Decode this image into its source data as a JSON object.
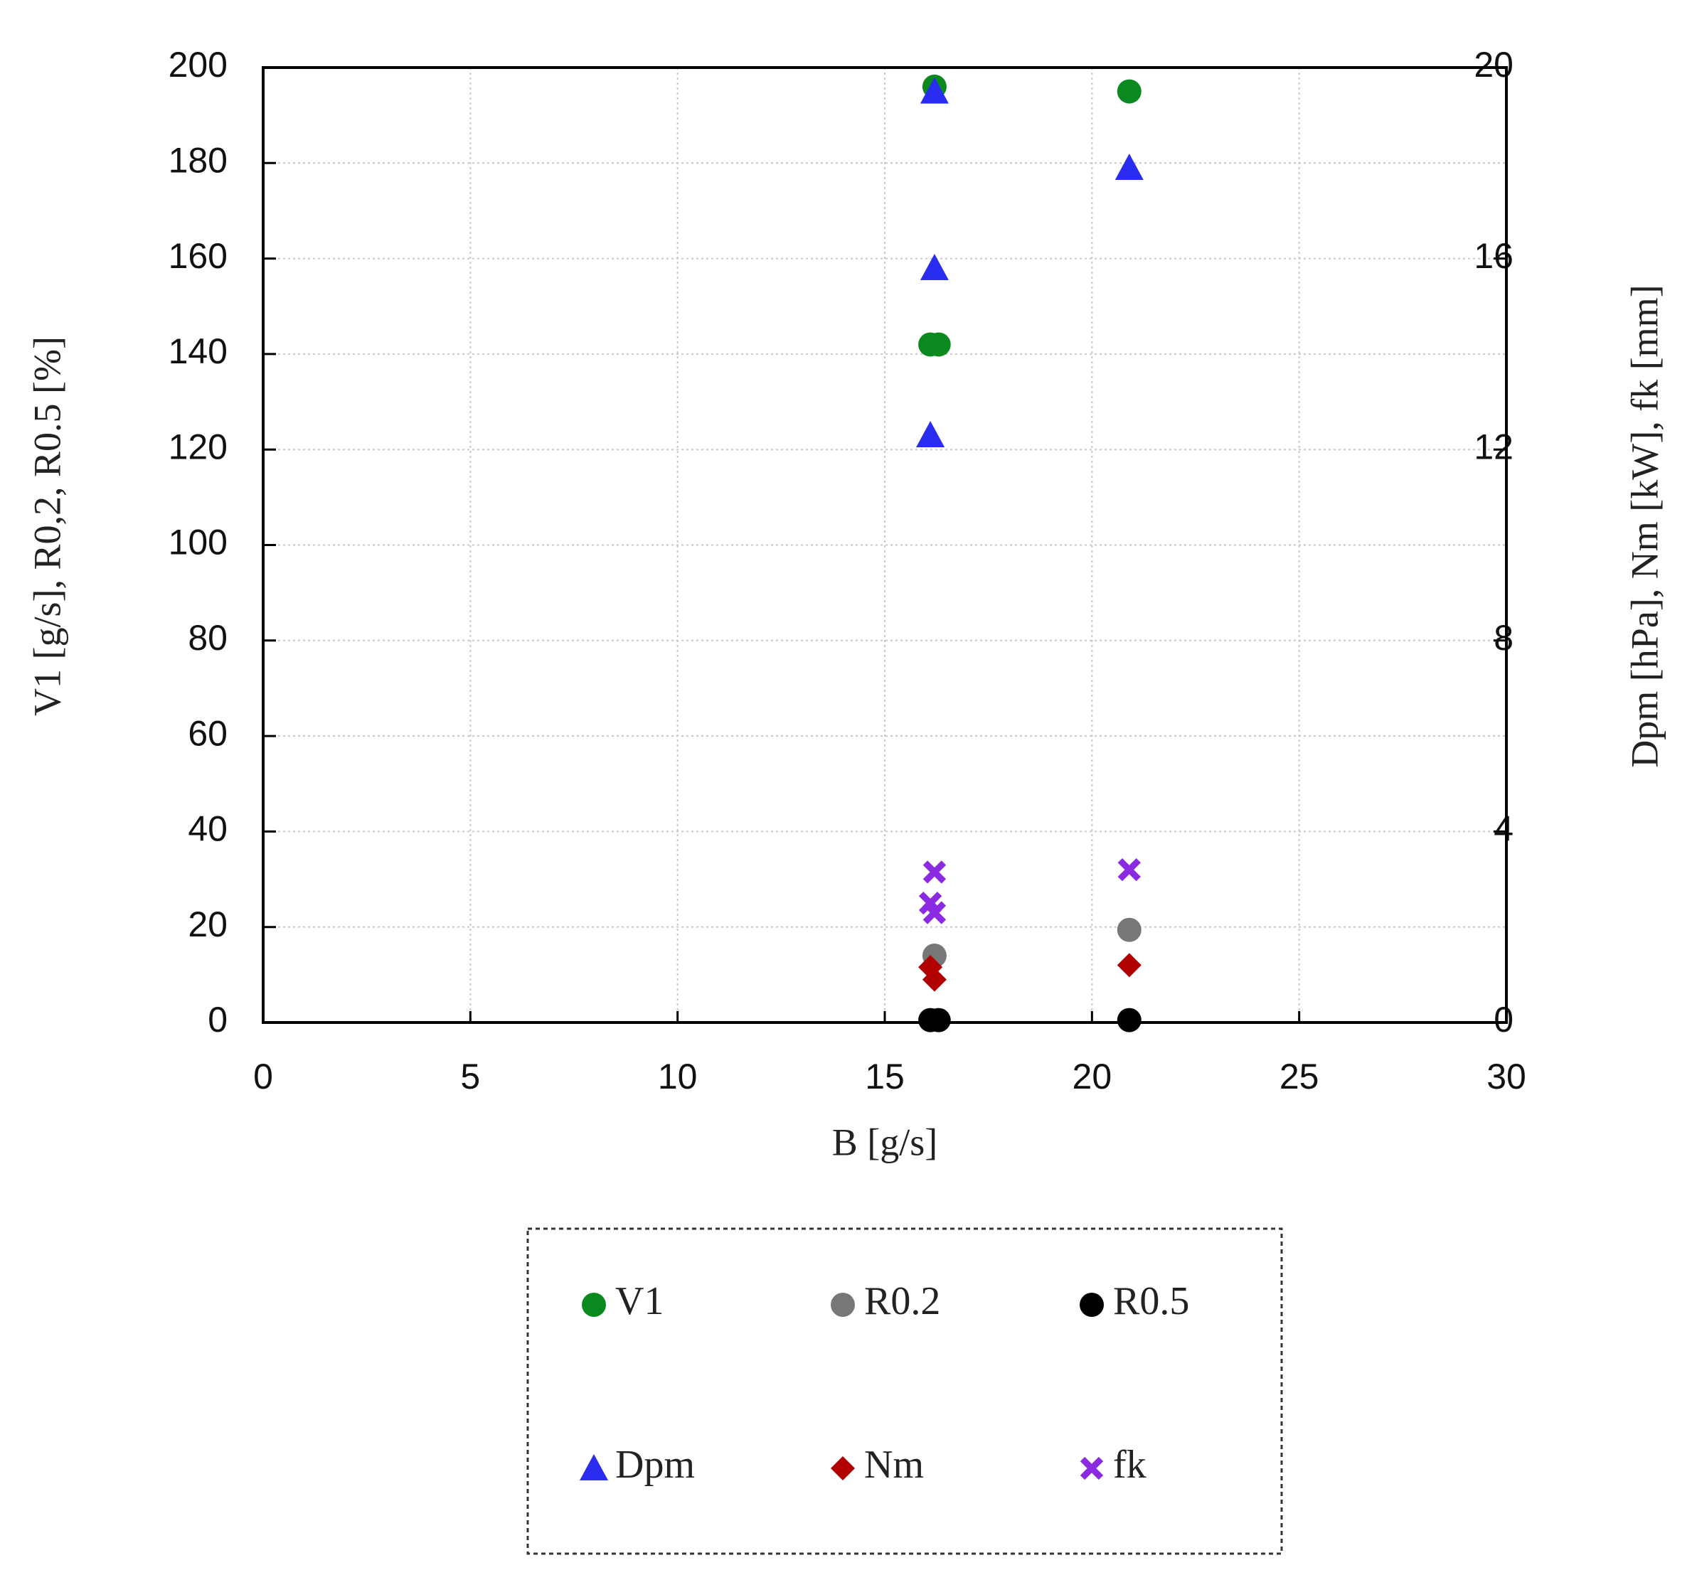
{
  "chart_data": {
    "type": "scatter",
    "xlabel": "B [g/s]",
    "ylabel": "V1 [g/s], R0,2, R0.5 [%]",
    "y2label": "Dpm [hPa], Nm [kW], fk [mm]",
    "xlim": [
      0,
      30
    ],
    "xticks": [
      0,
      5,
      10,
      15,
      20,
      25,
      30
    ],
    "ylim": [
      0,
      200
    ],
    "yticks": [
      0,
      20,
      40,
      60,
      80,
      100,
      120,
      140,
      160,
      180,
      200
    ],
    "y2lim": [
      0,
      20
    ],
    "y2ticks": [
      0,
      4,
      8,
      12,
      16,
      20
    ],
    "grid": true,
    "series": [
      {
        "name": "V1",
        "color": "#0a8a1e",
        "marker": "circle",
        "x": [
          16.1,
          16.3,
          16.2,
          20.9
        ],
        "values": [
          142,
          142,
          196,
          195
        ]
      },
      {
        "name": "R0.2",
        "color": "#777777",
        "marker": "circle",
        "x": [
          16.2,
          20.9
        ],
        "values": [
          14,
          19.4
        ]
      },
      {
        "name": "R0.5",
        "color": "#000000",
        "marker": "circle",
        "x": [
          16.1,
          16.3,
          20.9
        ],
        "values": [
          0.5,
          0.5,
          0.5
        ]
      },
      {
        "name": "Dpm",
        "color": "#2a2cf0",
        "marker": "triangle",
        "axis": "y2",
        "x": [
          16.2,
          16.2,
          16.1,
          20.9
        ],
        "values": [
          19.5,
          15.8,
          12.3,
          17.9
        ]
      },
      {
        "name": "Nm",
        "color": "#b00000",
        "marker": "diamond",
        "axis": "y2",
        "x": [
          16.1,
          16.2,
          20.9
        ],
        "values": [
          1.16,
          0.9,
          1.2
        ]
      },
      {
        "name": "fk",
        "color": "#8a2be2",
        "marker": "x",
        "axis": "y2",
        "x": [
          16.2,
          16.1,
          16.2,
          20.9
        ],
        "values": [
          3.15,
          2.5,
          2.3,
          3.2
        ]
      }
    ]
  }
}
